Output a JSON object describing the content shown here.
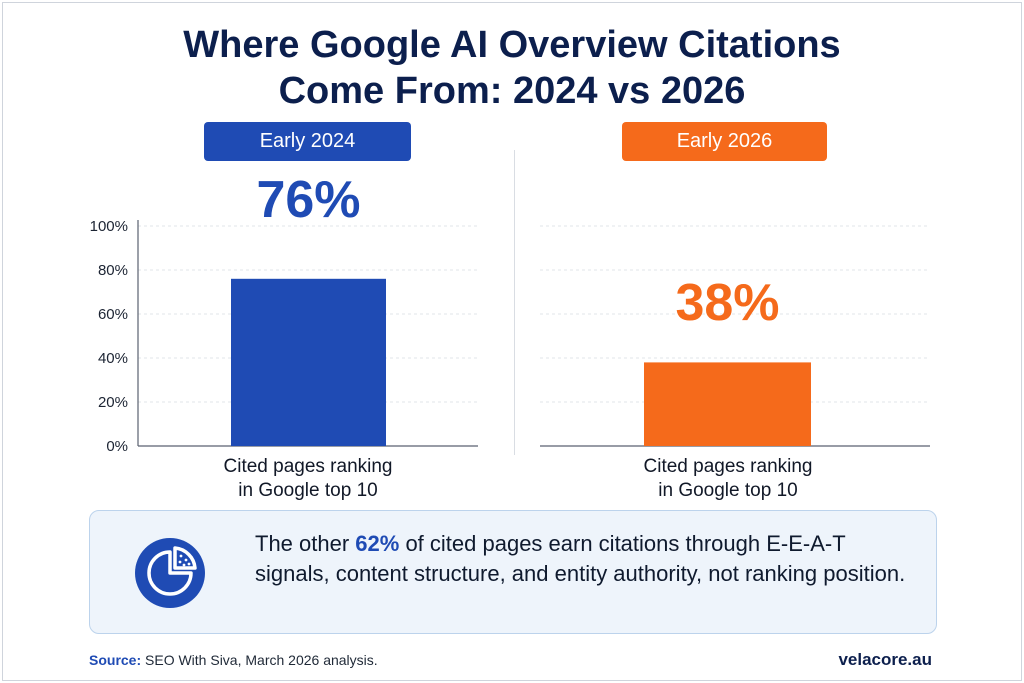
{
  "title_line1": "Where Google AI Overview Citations",
  "title_line2": "Come From: 2024 vs 2026",
  "colors": {
    "blue": "#1f4bb4",
    "orange": "#f56a1b",
    "navy": "#0c1f4d"
  },
  "chart_data": {
    "type": "bar",
    "ylim": [
      0,
      100
    ],
    "yticks": [
      "0%",
      "20%",
      "40%",
      "60%",
      "80%",
      "100%"
    ],
    "grid": true,
    "panels": [
      {
        "badge": "Early 2024",
        "value": 76,
        "value_label": "76%",
        "category": "Cited pages ranking in Google top 10",
        "category_line1": "Cited pages ranking",
        "category_line2": "in Google top 10",
        "color": "#1f4bb4"
      },
      {
        "badge": "Early 2026",
        "value": 38,
        "value_label": "38%",
        "category": "Cited pages ranking in Google top 10",
        "category_line1": "Cited pages ranking",
        "category_line2": "in Google top 10",
        "color": "#f56a1b"
      }
    ]
  },
  "callout": {
    "icon": "pie-chart-icon",
    "text_before": "The other ",
    "highlight": "62%",
    "text_after": " of cited pages earn citations through E-E-A-T signals, content structure, and entity authority, not ranking position."
  },
  "footer": {
    "source_label": "Source:",
    "source_text": "SEO With Siva, March 2026 analysis.",
    "brand": "velacore.au"
  }
}
